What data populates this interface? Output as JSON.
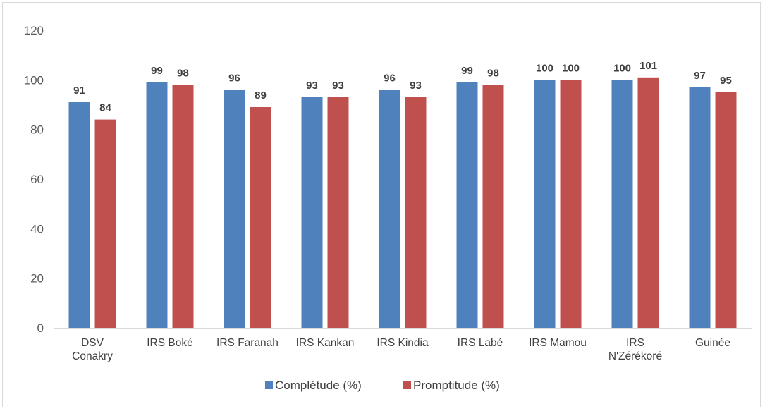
{
  "chart_data": {
    "type": "bar",
    "title": "",
    "xlabel": "",
    "ylabel": "",
    "ylim": [
      0,
      120
    ],
    "yticks": [
      "0",
      "20",
      "40",
      "60",
      "80",
      "100",
      "120"
    ],
    "grid": false,
    "legend_position": "bottom",
    "categories": [
      [
        "DSV",
        "Conakry"
      ],
      [
        "IRS Boké"
      ],
      [
        "IRS Faranah"
      ],
      [
        "IRS Kankan"
      ],
      [
        "IRS Kindia"
      ],
      [
        "IRS Labé"
      ],
      [
        "IRS Mamou"
      ],
      [
        "IRS",
        "N'Zérékoré"
      ],
      [
        "Guinée"
      ]
    ],
    "series": [
      {
        "name": "Complétude (%)",
        "color": "#4f81bd",
        "values": [
          91,
          99,
          96,
          93,
          96,
          99,
          100,
          100,
          97
        ]
      },
      {
        "name": "Promptitude (%)",
        "color": "#c0504d",
        "values": [
          84,
          98,
          89,
          93,
          93,
          98,
          100,
          101,
          95
        ]
      }
    ]
  }
}
